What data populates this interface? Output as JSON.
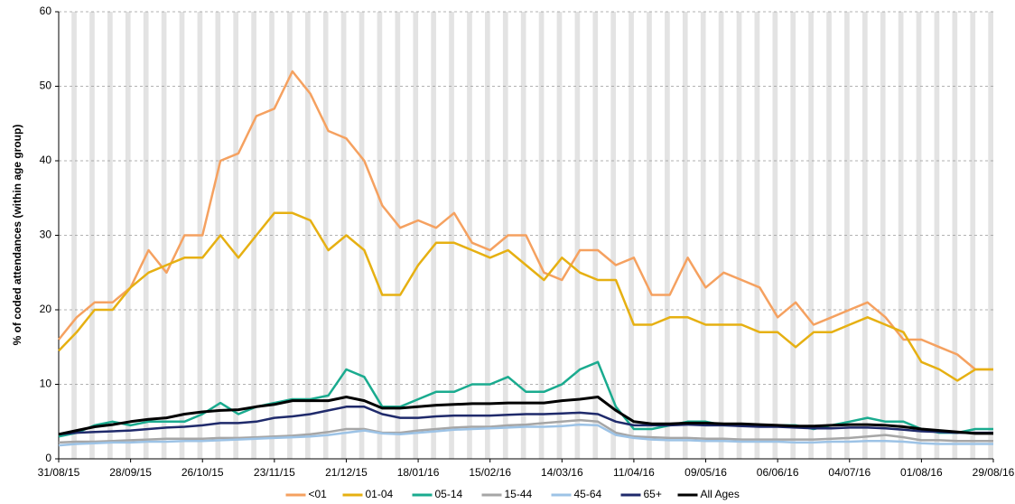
{
  "chart_data": {
    "type": "line",
    "y_label": "% of coded attendances (within age group)",
    "x": [
      "31/08/15",
      "07/09/15",
      "14/09/15",
      "21/09/15",
      "28/09/15",
      "05/10/15",
      "12/10/15",
      "19/10/15",
      "26/10/15",
      "02/11/15",
      "09/11/15",
      "16/11/15",
      "23/11/15",
      "30/11/15",
      "07/12/15",
      "14/12/15",
      "21/12/15",
      "28/12/15",
      "04/01/16",
      "11/01/16",
      "18/01/16",
      "25/01/16",
      "01/02/16",
      "08/02/16",
      "15/02/16",
      "22/02/16",
      "29/02/16",
      "07/03/16",
      "14/03/16",
      "21/03/16",
      "28/03/16",
      "04/04/16",
      "11/04/16",
      "18/04/16",
      "25/04/16",
      "02/05/16",
      "09/05/16",
      "16/05/16",
      "23/05/16",
      "30/05/16",
      "06/06/16",
      "13/06/16",
      "20/06/16",
      "27/06/16",
      "04/07/16",
      "11/07/16",
      "18/07/16",
      "25/07/16",
      "01/08/16",
      "08/08/16",
      "15/08/16",
      "22/08/16",
      "29/08/16"
    ],
    "xlim": [
      "31/08/15",
      "29/08/16"
    ],
    "xticks": [
      "31/08/15",
      "28/09/15",
      "26/10/15",
      "23/11/15",
      "21/12/15",
      "18/01/16",
      "15/02/16",
      "14/03/16",
      "11/04/16",
      "09/05/16",
      "06/06/16",
      "04/07/16",
      "01/08/16",
      "29/08/16"
    ],
    "ylim": [
      0,
      60
    ],
    "yticks": [
      0,
      10,
      20,
      30,
      40,
      50,
      60
    ],
    "grid": true,
    "series": [
      {
        "name": "<01",
        "color": "#f5a160",
        "values": [
          16,
          19,
          21,
          21,
          23,
          28,
          25,
          30,
          30,
          40,
          41,
          46,
          47,
          52,
          49,
          44,
          43,
          40,
          34,
          31,
          32,
          31,
          33,
          29,
          28,
          30,
          30,
          25,
          24,
          28,
          28,
          26,
          27,
          22,
          22,
          27,
          23,
          25,
          24,
          23,
          19,
          21,
          18,
          19,
          20,
          21,
          19,
          16,
          16,
          15,
          14,
          12,
          12
        ]
      },
      {
        "name": "01-04",
        "color": "#e6b012",
        "values": [
          14.5,
          17,
          20,
          20,
          23,
          25,
          26,
          27,
          27,
          30,
          27,
          30,
          33,
          33,
          32,
          28,
          30,
          28,
          22,
          22,
          26,
          29,
          29,
          28,
          27,
          28,
          26,
          24,
          27,
          25,
          24,
          24,
          18,
          18,
          19,
          19,
          18,
          18,
          18,
          17,
          17,
          15,
          17,
          17,
          18,
          19,
          18,
          17,
          13,
          12,
          10.5,
          12,
          12
        ]
      },
      {
        "name": "05-14",
        "color": "#1aab8f",
        "values": [
          3,
          3.5,
          4.5,
          5,
          4.5,
          5,
          5,
          5,
          6,
          7.5,
          6,
          7,
          7.5,
          8,
          8,
          8.5,
          12,
          11,
          7,
          7,
          8,
          9,
          9,
          10,
          10,
          11,
          9,
          9,
          10,
          12,
          13,
          7,
          4,
          4,
          4.5,
          5,
          5,
          4.5,
          4.5,
          4.5,
          4.5,
          4.5,
          4,
          4.5,
          5,
          5.5,
          5,
          5,
          4,
          3.5,
          3.5,
          4,
          4
        ]
      },
      {
        "name": "15-44",
        "color": "#a6a6a6",
        "values": [
          2.2,
          2.3,
          2.3,
          2.4,
          2.5,
          2.6,
          2.7,
          2.7,
          2.7,
          2.8,
          2.8,
          2.9,
          3,
          3.1,
          3.3,
          3.6,
          4,
          4,
          3.5,
          3.5,
          3.8,
          4,
          4.2,
          4.3,
          4.3,
          4.5,
          4.6,
          4.8,
          5,
          5.2,
          5,
          3.5,
          3,
          2.9,
          2.8,
          2.8,
          2.7,
          2.7,
          2.6,
          2.6,
          2.6,
          2.6,
          2.6,
          2.7,
          2.8,
          3,
          3.2,
          2.9,
          2.5,
          2.5,
          2.4,
          2.4,
          2.4
        ]
      },
      {
        "name": "45-64",
        "color": "#9dc3e6",
        "values": [
          1.8,
          2,
          2.1,
          2.2,
          2.2,
          2.3,
          2.3,
          2.4,
          2.4,
          2.5,
          2.6,
          2.7,
          2.8,
          2.9,
          3,
          3.2,
          3.5,
          3.8,
          3.4,
          3.3,
          3.5,
          3.7,
          3.9,
          4,
          4.1,
          4.2,
          4.3,
          4.3,
          4.4,
          4.6,
          4.5,
          3.2,
          2.8,
          2.6,
          2.5,
          2.5,
          2.4,
          2.4,
          2.3,
          2.3,
          2.3,
          2.2,
          2.2,
          2.3,
          2.3,
          2.4,
          2.4,
          2.3,
          2.1,
          2,
          2,
          2,
          2
        ]
      },
      {
        "name": "65+",
        "color": "#1f2a6b",
        "values": [
          3.3,
          3.5,
          3.6,
          3.7,
          3.8,
          4,
          4.2,
          4.3,
          4.5,
          4.8,
          4.8,
          5,
          5.5,
          5.7,
          6,
          6.5,
          7,
          7,
          6,
          5.5,
          5.5,
          5.7,
          5.8,
          5.8,
          5.8,
          5.9,
          6,
          6,
          6.1,
          6.2,
          6,
          5,
          4.5,
          4.5,
          4.5,
          4.6,
          4.5,
          4.5,
          4.4,
          4.3,
          4.3,
          4.2,
          4.1,
          4.1,
          4.2,
          4.2,
          4.1,
          3.9,
          3.7,
          3.6,
          3.5,
          3.5,
          3.5
        ]
      },
      {
        "name": "All Ages",
        "color": "#000000",
        "values": [
          3.3,
          3.8,
          4.3,
          4.6,
          5,
          5.3,
          5.5,
          6,
          6.3,
          6.5,
          6.6,
          7,
          7.3,
          7.8,
          7.8,
          7.8,
          8.3,
          7.8,
          6.8,
          6.8,
          7,
          7.2,
          7.3,
          7.4,
          7.4,
          7.5,
          7.5,
          7.5,
          7.8,
          8,
          8.3,
          6.5,
          5,
          4.7,
          4.7,
          4.8,
          4.8,
          4.7,
          4.7,
          4.6,
          4.5,
          4.4,
          4.4,
          4.5,
          4.6,
          4.6,
          4.5,
          4.3,
          4,
          3.8,
          3.6,
          3.4,
          3.4
        ]
      }
    ]
  }
}
